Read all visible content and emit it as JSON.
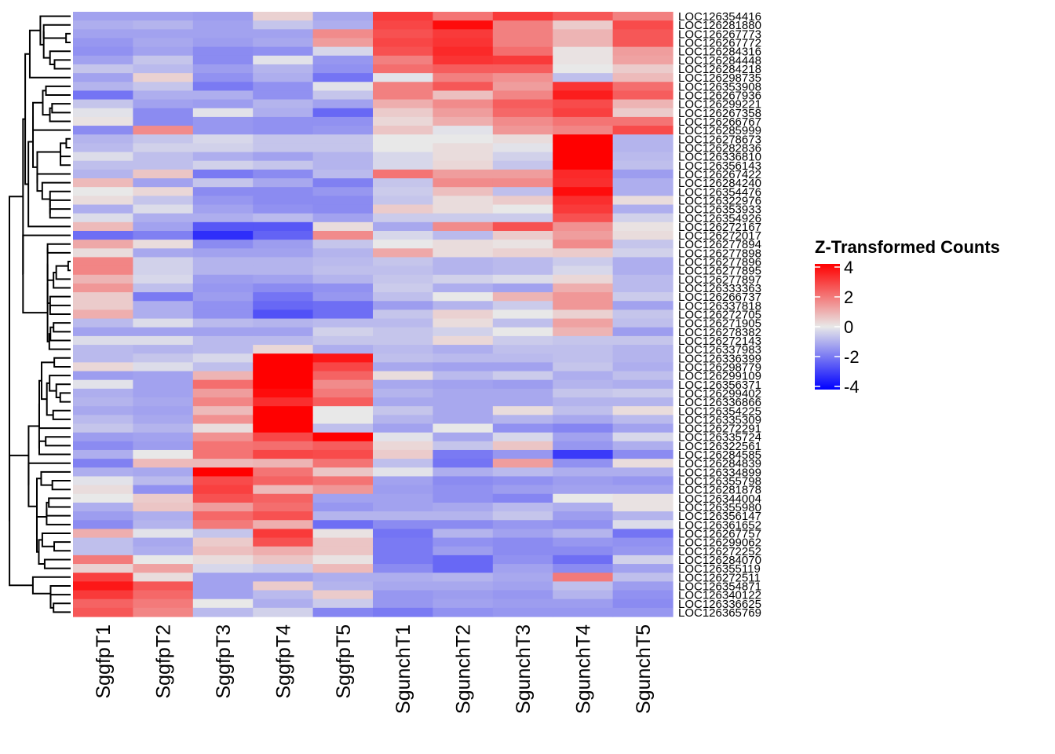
{
  "chart_data": {
    "type": "heatmap",
    "title": "",
    "xlabel": "",
    "ylabel": "",
    "columns": [
      "SggfpT1",
      "SggfpT2",
      "SggfpT3",
      "SggfpT4",
      "SggfpT5",
      "SgunchT1",
      "SgunchT2",
      "SgunchT3",
      "SgunchT4",
      "SgunchT5"
    ],
    "rows": [
      "LOC126354416",
      "LOC126281880",
      "LOC126267773",
      "LOC126267772",
      "LOC126284316",
      "LOC126284448",
      "LOC126284218",
      "LOC126298735",
      "LOC126353908",
      "LOC126267936",
      "LOC126299221",
      "LOC126267358",
      "LOC126266767",
      "LOC126285999",
      "LOC126278673",
      "LOC126282836",
      "LOC126336810",
      "LOC126356143",
      "LOC126267422",
      "LOC126284240",
      "LOC126354476",
      "LOC126322976",
      "LOC126353933",
      "LOC126354926",
      "LOC126272167",
      "LOC126272017",
      "LOC126277894",
      "LOC126277898",
      "LOC126277896",
      "LOC126277895",
      "LOC126277897",
      "LOC126333363",
      "LOC126266737",
      "LOC126337818",
      "LOC126272705",
      "LOC126271905",
      "LOC126278382",
      "LOC126272143",
      "LOC126337983",
      "LOC126336399",
      "LOC126298779",
      "LOC126299109",
      "LOC126356371",
      "LOC126299402",
      "LOC126336866",
      "LOC126354225",
      "LOC126335309",
      "LOC126272291",
      "LOC126335724",
      "LOC126322561",
      "LOC126284585",
      "LOC126284839",
      "LOC126334899",
      "LOC126355798",
      "LOC126281878",
      "LOC126344004",
      "LOC126355980",
      "LOC126356147",
      "LOC126361652",
      "LOC126267757",
      "LOC126299062",
      "LOC126272252",
      "LOC126284070",
      "LOC126355119",
      "LOC126272511",
      "LOC126354871",
      "LOC126340122",
      "LOC126336625",
      "LOC126365769"
    ],
    "values": [
      [
        -1.2,
        -1.2,
        -1.3,
        0.4,
        -1.1,
        3.0,
        2.0,
        3.0,
        2.5,
        1.8
      ],
      [
        -1.0,
        -0.9,
        -1.2,
        -0.6,
        -1.0,
        2.8,
        3.8,
        1.8,
        0.5,
        2.7
      ],
      [
        -1.2,
        -1.2,
        -1.2,
        -1.2,
        1.6,
        2.6,
        3.0,
        1.8,
        0.9,
        2.5
      ],
      [
        -1.4,
        -1.1,
        -1.3,
        -1.1,
        1.3,
        2.8,
        3.1,
        1.8,
        0.9,
        2.5
      ],
      [
        -1.5,
        -1.2,
        -1.6,
        -1.5,
        -0.3,
        2.6,
        3.3,
        2.1,
        0.1,
        1.3
      ],
      [
        -1.2,
        -0.6,
        -1.6,
        -0.1,
        -1.4,
        1.8,
        3.1,
        3.0,
        0.1,
        1.2
      ],
      [
        -0.6,
        -0.8,
        -1.3,
        -0.9,
        -1.5,
        2.1,
        2.4,
        2.4,
        0.0,
        0.5
      ],
      [
        -1.2,
        0.4,
        -1.5,
        -1.0,
        -2.0,
        -0.1,
        1.8,
        1.5,
        -0.7,
        0.8
      ],
      [
        -0.9,
        -0.6,
        -1.9,
        -1.5,
        -0.1,
        1.8,
        2.5,
        1.3,
        3.1,
        2.1
      ],
      [
        -2.0,
        -1.0,
        -1.0,
        -1.5,
        -0.6,
        1.8,
        0.7,
        1.7,
        3.5,
        2.4
      ],
      [
        -0.6,
        -1.2,
        -1.3,
        -0.9,
        -1.2,
        1.0,
        1.6,
        2.4,
        2.7,
        0.9
      ],
      [
        -0.1,
        -1.6,
        -0.1,
        -1.0,
        -2.2,
        0.5,
        1.3,
        2.2,
        2.9,
        0.5
      ],
      [
        0.1,
        -1.6,
        -1.4,
        -1.5,
        -1.5,
        0.3,
        1.0,
        1.6,
        2.0,
        2.0
      ],
      [
        -1.6,
        1.6,
        -1.4,
        -1.5,
        -1.4,
        0.6,
        -0.1,
        1.4,
        1.7,
        2.7
      ],
      [
        -0.9,
        -0.6,
        -0.3,
        -0.6,
        -0.6,
        0.0,
        0.0,
        0.2,
        4.8,
        -0.9
      ],
      [
        -0.8,
        -0.4,
        -0.4,
        -0.6,
        -0.6,
        0.0,
        0.2,
        -0.1,
        4.8,
        -0.9
      ],
      [
        -0.2,
        -0.7,
        -1.0,
        -1.2,
        -0.9,
        -0.3,
        0.2,
        -0.4,
        4.8,
        -0.8
      ],
      [
        -0.7,
        -0.7,
        -0.4,
        -0.6,
        -0.9,
        -0.3,
        0.3,
        -0.6,
        4.8,
        -0.7
      ],
      [
        -0.9,
        0.6,
        -1.9,
        -1.6,
        -0.8,
        2.0,
        1.3,
        1.3,
        3.3,
        -1.3
      ],
      [
        0.8,
        -1.2,
        -0.6,
        -1.1,
        -1.8,
        -0.6,
        1.6,
        1.6,
        3.2,
        -1.0
      ],
      [
        0.0,
        0.3,
        -1.6,
        -1.6,
        -1.4,
        -0.5,
        0.7,
        -0.7,
        3.8,
        -1.0
      ],
      [
        0.2,
        -0.6,
        -1.4,
        -1.6,
        -1.6,
        -0.6,
        0.2,
        0.5,
        3.2,
        0.2
      ],
      [
        -1.0,
        -0.2,
        -1.2,
        -1.5,
        -1.6,
        0.5,
        0.2,
        0.0,
        3.0,
        -1.0
      ],
      [
        -0.2,
        -1.0,
        -1.0,
        -0.8,
        -1.2,
        -0.5,
        -0.5,
        -0.5,
        2.6,
        -0.4
      ],
      [
        0.8,
        -1.2,
        -2.5,
        -2.5,
        0.2,
        -1.1,
        1.6,
        2.6,
        1.5,
        0.1
      ],
      [
        -2.1,
        -1.8,
        -3.2,
        -2.3,
        1.6,
        -0.3,
        -0.8,
        0.5,
        1.3,
        0.2
      ],
      [
        1.1,
        0.2,
        -1.6,
        -1.3,
        -0.6,
        0.0,
        0.2,
        0.1,
        1.6,
        -0.6
      ],
      [
        0.2,
        -1.1,
        -1.2,
        -1.2,
        -0.9,
        1.1,
        0.2,
        0.4,
        0.5,
        -0.4
      ],
      [
        1.7,
        -0.4,
        -0.9,
        -0.9,
        -0.8,
        -0.6,
        -0.9,
        -0.8,
        -0.5,
        -1.0
      ],
      [
        1.7,
        -0.4,
        -0.9,
        -0.9,
        -0.7,
        -0.7,
        -0.9,
        -0.8,
        -0.3,
        -1.0
      ],
      [
        0.9,
        -0.3,
        -1.3,
        -1.2,
        -0.9,
        -0.6,
        -0.4,
        -0.2,
        0.3,
        -0.8
      ],
      [
        1.4,
        -0.7,
        -1.4,
        -1.6,
        -1.5,
        -0.5,
        -1.0,
        -1.2,
        1.0,
        -0.8
      ],
      [
        0.5,
        -1.9,
        -1.3,
        -2.0,
        -1.4,
        -0.7,
        0.0,
        0.9,
        1.4,
        -0.5
      ],
      [
        0.5,
        -1.0,
        -1.5,
        -2.2,
        -2.1,
        -1.3,
        -0.9,
        -0.5,
        1.4,
        -1.2
      ],
      [
        1.0,
        -1.0,
        -1.5,
        -2.6,
        -2.1,
        -0.6,
        0.4,
        0.0,
        0.4,
        -0.6
      ],
      [
        -0.8,
        -0.2,
        -0.8,
        -0.9,
        -0.8,
        -0.8,
        0.2,
        -0.7,
        1.2,
        -0.7
      ],
      [
        -1.2,
        -1.2,
        -1.2,
        -1.2,
        -0.4,
        -0.6,
        -0.4,
        0.0,
        0.9,
        -1.3
      ],
      [
        -0.2,
        -0.2,
        -0.8,
        -0.8,
        -0.6,
        -0.6,
        0.3,
        -0.5,
        -0.6,
        -0.6
      ],
      [
        -0.8,
        -0.9,
        -0.8,
        0.3,
        -1.0,
        -0.8,
        -1.0,
        -0.7,
        -0.7,
        -0.9
      ],
      [
        -0.8,
        -0.6,
        -0.3,
        4.8,
        3.6,
        -0.7,
        -0.8,
        -0.8,
        -0.7,
        -0.9
      ],
      [
        0.3,
        -0.2,
        -0.7,
        4.8,
        2.8,
        -1.1,
        -1.2,
        -1.2,
        -0.6,
        -1.0
      ],
      [
        -1.3,
        -1.2,
        0.9,
        4.8,
        2.3,
        0.2,
        -0.8,
        -0.5,
        -1.0,
        -0.7
      ],
      [
        -0.1,
        -1.2,
        2.1,
        4.2,
        1.6,
        -1.1,
        -1.2,
        -1.3,
        -0.9,
        -1.0
      ],
      [
        -1.0,
        -1.2,
        1.3,
        3.8,
        1.9,
        -0.9,
        -1.1,
        -1.1,
        -0.6,
        -0.5
      ],
      [
        -0.9,
        -1.1,
        1.7,
        3.2,
        2.4,
        -1.1,
        -1.1,
        -1.1,
        -0.9,
        -0.9
      ],
      [
        -1.1,
        -1.2,
        0.8,
        4.8,
        0.0,
        -0.6,
        -1.1,
        0.2,
        -0.7,
        0.2
      ],
      [
        -0.8,
        -1.1,
        1.5,
        4.8,
        0.0,
        -0.9,
        -1.1,
        -0.9,
        -1.1,
        -0.8
      ],
      [
        -0.6,
        -0.9,
        0.2,
        4.8,
        -0.7,
        -1.2,
        0.0,
        -1.5,
        -1.7,
        -1.2
      ],
      [
        -1.3,
        -1.2,
        1.5,
        2.8,
        4.3,
        -0.1,
        -1.1,
        -0.3,
        -1.2,
        -0.3
      ],
      [
        -1.6,
        -1.3,
        2.0,
        2.1,
        2.4,
        0.3,
        -0.6,
        0.6,
        -1.4,
        -1.0
      ],
      [
        -1.0,
        0.0,
        2.0,
        2.8,
        2.7,
        0.5,
        -1.9,
        -1.4,
        -3.0,
        -1.6
      ],
      [
        -1.8,
        0.8,
        0.8,
        0.9,
        2.0,
        -0.7,
        -2.0,
        1.3,
        -1.5,
        0.2
      ],
      [
        -1.0,
        -1.1,
        4.8,
        2.0,
        0.6,
        -0.1,
        -1.0,
        -0.8,
        -1.0,
        -1.0
      ],
      [
        -0.1,
        -0.8,
        2.7,
        2.3,
        2.0,
        -1.2,
        -1.6,
        -1.5,
        -1.3,
        -1.4
      ],
      [
        0.2,
        -1.5,
        2.9,
        0.8,
        1.4,
        -1.3,
        -1.5,
        -1.3,
        -1.2,
        -1.2
      ],
      [
        0.0,
        0.5,
        2.6,
        2.3,
        -1.2,
        -1.2,
        -1.5,
        -1.7,
        0.0,
        0.1
      ],
      [
        -1.0,
        0.6,
        1.3,
        2.1,
        -1.4,
        -1.2,
        -1.1,
        -0.8,
        -1.0,
        0.1
      ],
      [
        -1.3,
        -1.0,
        2.2,
        2.6,
        -0.9,
        -0.9,
        -0.9,
        -0.6,
        -1.3,
        -0.9
      ],
      [
        -1.6,
        -0.9,
        1.9,
        1.0,
        -2.1,
        -1.6,
        -1.6,
        -1.4,
        -1.5,
        -0.2
      ],
      [
        1.0,
        -0.1,
        -0.6,
        3.0,
        0.1,
        -2.0,
        -0.9,
        -1.2,
        -0.9,
        -2.0
      ],
      [
        -0.7,
        -1.1,
        0.5,
        2.6,
        0.6,
        -1.9,
        -1.5,
        -1.6,
        -1.4,
        -1.5
      ],
      [
        -0.7,
        -1.0,
        0.7,
        1.0,
        0.6,
        -1.9,
        -1.3,
        -1.6,
        -1.6,
        -1.4
      ],
      [
        1.9,
        0.0,
        0.2,
        0.6,
        0.1,
        -1.9,
        -2.2,
        -1.5,
        -2.1,
        -0.4
      ],
      [
        0.4,
        1.2,
        -0.3,
        -0.5,
        0.8,
        -1.6,
        -2.2,
        -1.2,
        -1.6,
        -1.2
      ],
      [
        2.9,
        0.2,
        -1.2,
        -1.2,
        -1.0,
        -1.0,
        -0.9,
        -1.1,
        1.9,
        -0.7
      ],
      [
        3.6,
        2.5,
        -1.2,
        0.5,
        -0.9,
        -1.1,
        -1.1,
        -1.2,
        -0.7,
        -1.3
      ],
      [
        3.0,
        2.2,
        -1.2,
        -0.8,
        0.5,
        -1.4,
        -1.3,
        -1.4,
        -0.9,
        -1.5
      ],
      [
        2.3,
        1.9,
        0.0,
        -1.0,
        -0.5,
        -1.4,
        -1.2,
        -1.3,
        -1.3,
        -1.6
      ],
      [
        2.5,
        1.7,
        -0.8,
        -0.4,
        -1.7,
        -1.9,
        -1.5,
        -1.4,
        -1.4,
        -1.4
      ]
    ],
    "color_scale": {
      "min": -4,
      "mid": 0,
      "max": 4,
      "low_color": "#0000FF",
      "mid_color": "#E8E8E8",
      "high_color": "#FF0000"
    },
    "legend": {
      "title": "Z-Transformed Counts",
      "ticks": [
        "4",
        "2",
        "0",
        "-2",
        "-4"
      ],
      "tick_values": [
        4,
        2,
        0,
        -2,
        -4
      ],
      "position": "right"
    },
    "row_dendrogram": true,
    "column_dendrogram": false
  }
}
